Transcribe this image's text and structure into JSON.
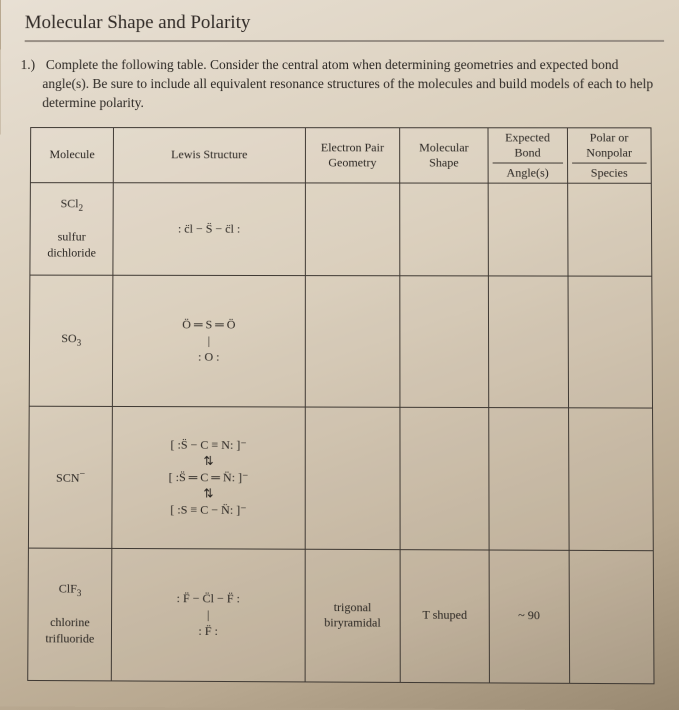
{
  "title": "Molecular Shape and Polarity",
  "instructions": {
    "num": "1.)",
    "text": "Complete the following table. Consider the central atom when determining geometries and expected bond angle(s). Be sure to include all equivalent resonance structures of the molecules and build models of each to help determine polarity."
  },
  "headers": {
    "molecule": "Molecule",
    "lewis": "Lewis Structure",
    "epg": "Electron Pair Geometry",
    "shape": "Molecular Shape",
    "angle_top": "Expected Bond",
    "angle_bot": "Angle(s)",
    "polar_top": "Polar or Nonpolar",
    "polar_bot": "Species"
  },
  "rows": [
    {
      "formula_html": "SCl<sub>2</sub>",
      "name": "sulfur dichloride",
      "lewis": ": c̈l − S̈ − c̈l :",
      "epg": "",
      "shape": "",
      "angle": "",
      "polar": ""
    },
    {
      "formula_html": "SO<sub>3</sub>",
      "name": "",
      "lewis": "Ö ═ S ═ Ö\n     | \n   : O :",
      "epg": "",
      "shape": "",
      "angle": "",
      "polar": ""
    },
    {
      "formula_html": "SCN<sup>−</sup>",
      "name": "",
      "lewis": "[ :S̈ − C ≡ N: ]⁻\n   ⇅\n[ :S̈ ═ C ═ N̈: ]⁻\n   ⇅\n[ :S ≡ C − N̈: ]⁻",
      "epg": "",
      "shape": "",
      "angle": "",
      "polar": ""
    },
    {
      "formula_html": "ClF<sub>3</sub>",
      "name": "chlorine trifluoride",
      "lewis": ": F̈ − C̈l − F̈ :\n      |\n    : F̈ :",
      "epg": "trigonal biryramidal",
      "shape": "T shuped",
      "angle": "~ 90",
      "polar": ""
    }
  ]
}
